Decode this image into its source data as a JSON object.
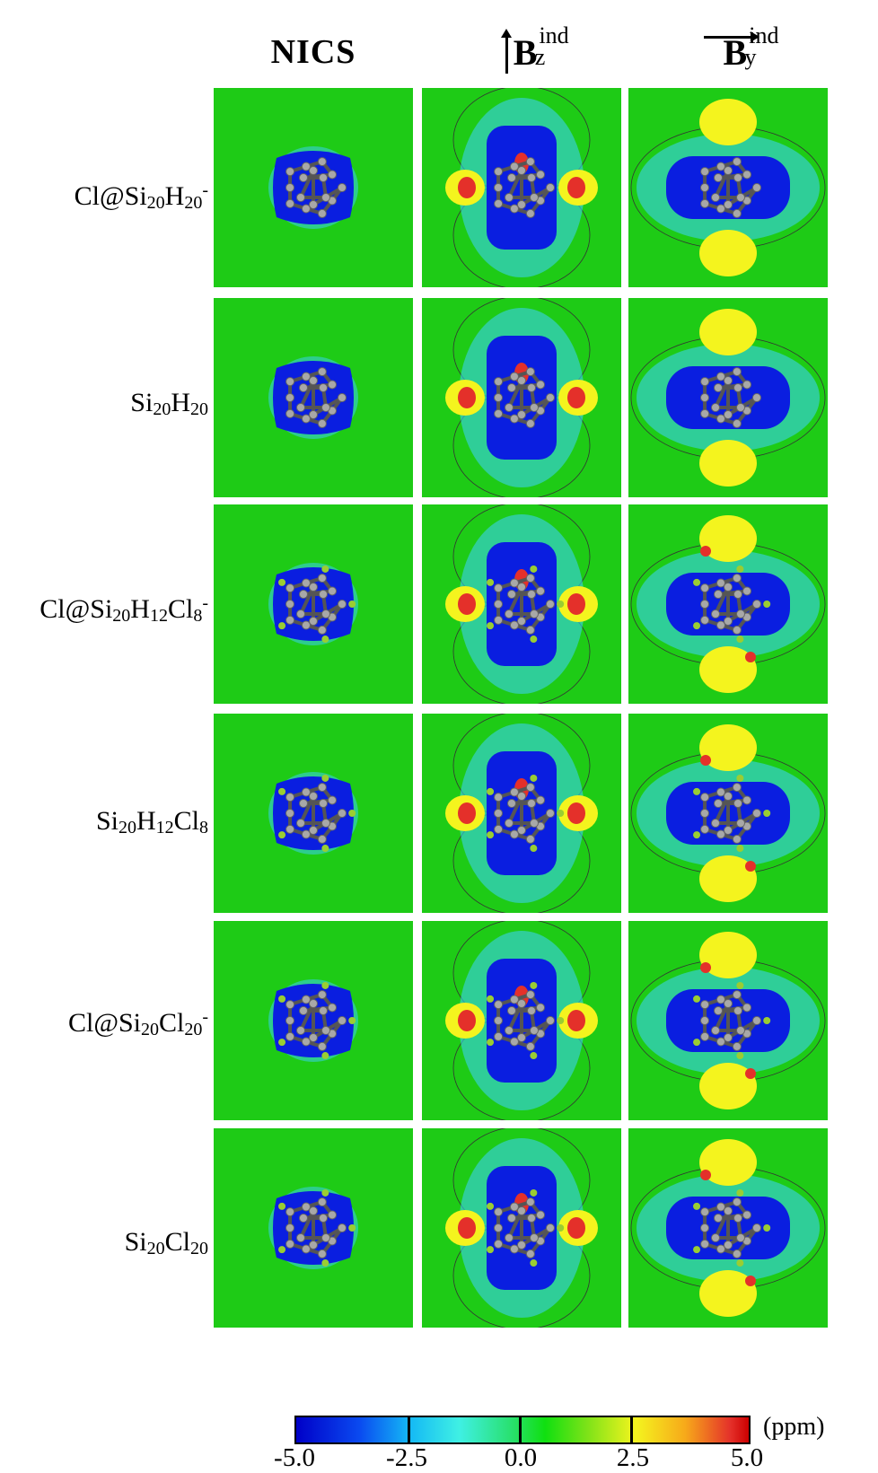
{
  "column_headers": {
    "nics": "NICS",
    "bz": {
      "symbol": "B",
      "sup": "ind",
      "sub": "z"
    },
    "by": {
      "symbol": "B",
      "sup": "ind",
      "sub": "y"
    }
  },
  "rows": [
    {
      "prefix": "Cl@Si",
      "n1": "20",
      "mid": "H",
      "n2": "20",
      "tail": "",
      "n3": "",
      "charge": "-"
    },
    {
      "prefix": "Si",
      "n1": "20",
      "mid": "H",
      "n2": "20",
      "tail": "",
      "n3": "",
      "charge": ""
    },
    {
      "prefix": "Cl@Si",
      "n1": "20",
      "mid": "H",
      "n2": "12",
      "tail": "Cl",
      "n3": "8",
      "charge": "-"
    },
    {
      "prefix": "Si",
      "n1": "20",
      "mid": "H",
      "n2": "12",
      "tail": "Cl",
      "n3": "8",
      "charge": ""
    },
    {
      "prefix": "Cl@Si",
      "n1": "20",
      "mid": "Cl",
      "n2": "20",
      "tail": "",
      "n3": "",
      "charge": "-"
    },
    {
      "prefix": "Si",
      "n1": "20",
      "mid": "Cl",
      "n2": "20",
      "tail": "",
      "n3": "",
      "charge": ""
    }
  ],
  "colorbar": {
    "unit": "(ppm)",
    "labels": [
      "-5.0",
      "-2.5",
      "0.0",
      "2.5",
      "5.0"
    ],
    "min": -5.0,
    "max": 5.0,
    "colors": {
      "low": "#0000c8",
      "mid_low": "#3ff0e4",
      "mid": "#10e010",
      "mid_high": "#f4f41e",
      "high": "#cc0000"
    }
  },
  "colors": {
    "background_field": "#1ecb16",
    "shielding": "#0a1ee0",
    "deshielding": "#e4302a",
    "atom_si": "#a8a8a8",
    "atom_cl": "#9acd32"
  }
}
